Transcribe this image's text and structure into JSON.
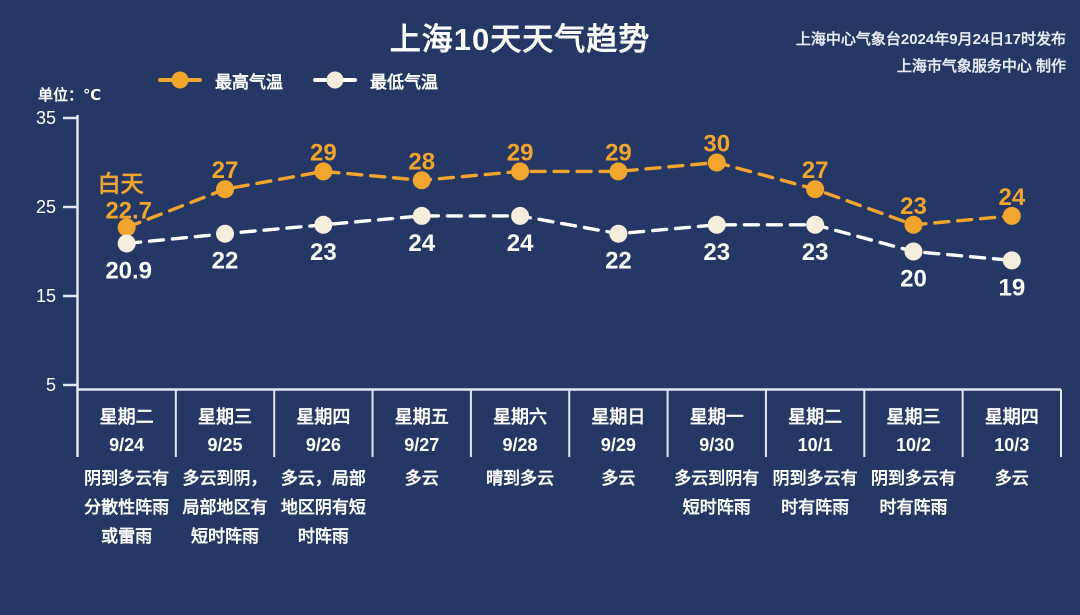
{
  "header": {
    "title": "上海10天天气趋势",
    "source_line1": "上海中心气象台2024年9月24日17时发布",
    "source_line2": "上海市气象服务中心 制作"
  },
  "unit_label": "单位：℃",
  "legend": [
    {
      "label": "最高气温",
      "line_color": "#f2a52d",
      "dot_color": "#f2a52d"
    },
    {
      "label": "最低气温",
      "line_color": "#ffffff",
      "dot_color": "#f5eedd"
    }
  ],
  "colors": {
    "background": "#253764",
    "axis": "#e2e7f1",
    "text": "#ffffff",
    "high": "#f2a52d",
    "low_dot": "#f5eedd",
    "low_line": "#ffffff"
  },
  "chart_data": {
    "type": "line",
    "title": "上海10天天气趋势",
    "ylabel": "单位：℃",
    "ylim": [
      5,
      35
    ],
    "yticks": [
      35,
      25,
      15,
      5
    ],
    "grid": false,
    "legend_position": "top-left",
    "first_point_annotation": "白天",
    "categories": [
      "9/24",
      "9/25",
      "9/26",
      "9/27",
      "9/28",
      "9/29",
      "9/30",
      "10/1",
      "10/2",
      "10/3"
    ],
    "days": [
      {
        "weekday": "星期二",
        "date": "9/24",
        "weather": "阴到多云有分散性阵雨或雷雨"
      },
      {
        "weekday": "星期三",
        "date": "9/25",
        "weather": "多云到阴，局部地区有短时阵雨"
      },
      {
        "weekday": "星期四",
        "date": "9/26",
        "weather": "多云，局部地区阴有短时阵雨"
      },
      {
        "weekday": "星期五",
        "date": "9/27",
        "weather": "多云"
      },
      {
        "weekday": "星期六",
        "date": "9/28",
        "weather": "晴到多云"
      },
      {
        "weekday": "星期日",
        "date": "9/29",
        "weather": "多云"
      },
      {
        "weekday": "星期一",
        "date": "9/30",
        "weather": "多云到阴有短时阵雨"
      },
      {
        "weekday": "星期二",
        "date": "10/1",
        "weather": "阴到多云有时有阵雨"
      },
      {
        "weekday": "星期三",
        "date": "10/2",
        "weather": "阴到多云有时有阵雨"
      },
      {
        "weekday": "星期四",
        "date": "10/3",
        "weather": "多云"
      }
    ],
    "series": [
      {
        "name": "最高气温",
        "line_color": "#f2a52d",
        "dot_color": "#f2a52d",
        "label_color": "#f2a52d",
        "values": [
          22.7,
          27,
          29,
          28,
          29,
          29,
          30,
          27,
          23,
          24
        ]
      },
      {
        "name": "最低气温",
        "line_color": "#ffffff",
        "dot_color": "#f5eedd",
        "label_color": "#ffffff",
        "values": [
          20.9,
          22,
          23,
          24,
          24,
          22,
          23,
          23,
          20,
          19
        ]
      }
    ]
  }
}
